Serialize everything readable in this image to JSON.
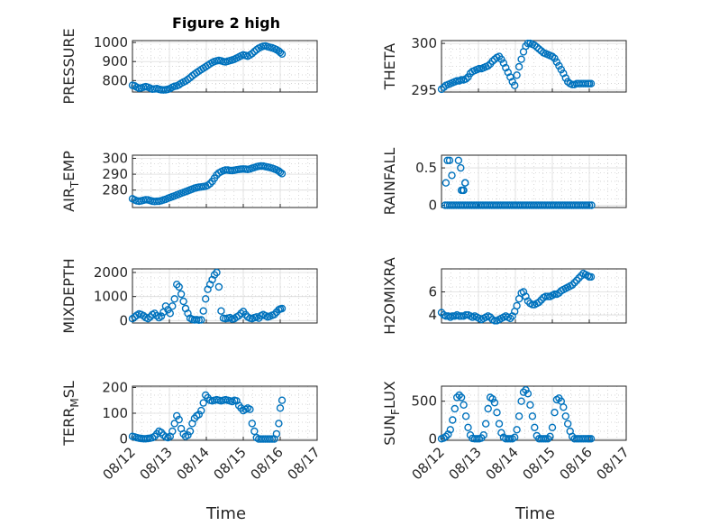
{
  "figure_title": "Figure 2 high",
  "colors": {
    "marker": "#0072bd",
    "axis": "#262626",
    "grid": "#c8c8c8",
    "background": "#ffffff"
  },
  "chart_data": [
    {
      "type": "scatter",
      "ylabel": "PRESSURE",
      "title": "Figure 2 high",
      "xlim": [
        "08/12",
        "08/17"
      ],
      "ylim": [
        740,
        1010
      ],
      "yticks": [
        "800",
        "900",
        "1000"
      ],
      "xticks": [
        "08/12",
        "08/13",
        "08/14",
        "08/15",
        "08/16",
        "08/17"
      ],
      "grid": true,
      "x": [
        0,
        0.06,
        0.12,
        0.18,
        0.24,
        0.3,
        0.36,
        0.42,
        0.48,
        0.54,
        0.6,
        0.66,
        0.72,
        0.78,
        0.84,
        0.9,
        0.96,
        1.02,
        1.08,
        1.14,
        1.2,
        1.26,
        1.32,
        1.38,
        1.44,
        1.5,
        1.56,
        1.62,
        1.68,
        1.74,
        1.8,
        1.86,
        1.92,
        1.98,
        2.04,
        2.1,
        2.16,
        2.22,
        2.28,
        2.34,
        2.4,
        2.46,
        2.52,
        2.58,
        2.64,
        2.7,
        2.76,
        2.82,
        2.88,
        2.94,
        3.0,
        3.06,
        3.12,
        3.18,
        3.24,
        3.3,
        3.36,
        3.42,
        3.48,
        3.54,
        3.6,
        3.66,
        3.72,
        3.78,
        3.84,
        3.9,
        3.96,
        4.0,
        4.05
      ],
      "y": [
        775,
        772,
        765,
        760,
        762,
        765,
        768,
        765,
        760,
        755,
        756,
        758,
        754,
        752,
        751,
        752,
        754,
        758,
        765,
        770,
        772,
        778,
        786,
        792,
        798,
        806,
        815,
        825,
        834,
        842,
        850,
        858,
        865,
        872,
        880,
        888,
        895,
        900,
        904,
        906,
        904,
        900,
        898,
        902,
        905,
        908,
        912,
        918,
        924,
        930,
        935,
        932,
        928,
        934,
        942,
        952,
        962,
        970,
        976,
        980,
        982,
        978,
        975,
        972,
        968,
        962,
        955,
        948,
        940
      ]
    },
    {
      "type": "scatter",
      "ylabel": "THETA",
      "xlim": [
        "08/12",
        "08/17"
      ],
      "ylim": [
        294.8,
        300.3
      ],
      "yticks": [
        "295",
        "300"
      ],
      "xticks": [
        "08/12",
        "08/13",
        "08/14",
        "08/15",
        "08/16",
        "08/17"
      ],
      "grid": true,
      "x": [
        0,
        0.06,
        0.12,
        0.18,
        0.24,
        0.3,
        0.36,
        0.42,
        0.48,
        0.54,
        0.6,
        0.66,
        0.72,
        0.78,
        0.84,
        0.9,
        0.96,
        1.02,
        1.08,
        1.14,
        1.2,
        1.26,
        1.32,
        1.38,
        1.44,
        1.5,
        1.56,
        1.62,
        1.68,
        1.74,
        1.8,
        1.86,
        1.92,
        1.98,
        2.04,
        2.1,
        2.16,
        2.22,
        2.28,
        2.34,
        2.4,
        2.46,
        2.52,
        2.58,
        2.64,
        2.7,
        2.76,
        2.82,
        2.88,
        2.94,
        3.0,
        3.06,
        3.12,
        3.18,
        3.24,
        3.3,
        3.36,
        3.42,
        3.48,
        3.54,
        3.6,
        3.66,
        3.72,
        3.78,
        3.84,
        3.9,
        3.96,
        4.0,
        4.05
      ],
      "y": [
        295.1,
        295.3,
        295.5,
        295.6,
        295.7,
        295.8,
        295.9,
        296.0,
        296.0,
        296.1,
        296.1,
        296.2,
        296.4,
        296.8,
        297.0,
        297.1,
        297.2,
        297.3,
        297.3,
        297.4,
        297.5,
        297.6,
        297.8,
        298.1,
        298.3,
        298.5,
        298.6,
        298.3,
        297.9,
        297.4,
        296.9,
        296.4,
        295.9,
        295.5,
        296.6,
        297.5,
        298.3,
        299.1,
        299.7,
        300.0,
        300.0,
        299.9,
        299.8,
        299.6,
        299.4,
        299.2,
        299.0,
        298.9,
        298.8,
        298.7,
        298.6,
        298.4,
        298.0,
        297.6,
        297.2,
        296.8,
        296.3,
        295.9,
        295.7,
        295.6,
        295.6,
        295.7,
        295.7,
        295.7,
        295.7,
        295.7,
        295.7,
        295.7,
        295.7
      ]
    },
    {
      "type": "scatter",
      "ylabel": "AIR_TEMP",
      "xlim": [
        "08/12",
        "08/17"
      ],
      "ylim": [
        269,
        302
      ],
      "yticks": [
        "280",
        "290",
        "300"
      ],
      "xticks": [
        "08/12",
        "08/13",
        "08/14",
        "08/15",
        "08/16",
        "08/17"
      ],
      "grid": true,
      "x": [
        0,
        0.06,
        0.12,
        0.18,
        0.24,
        0.3,
        0.36,
        0.42,
        0.48,
        0.54,
        0.6,
        0.66,
        0.72,
        0.78,
        0.84,
        0.9,
        0.96,
        1.02,
        1.08,
        1.14,
        1.2,
        1.26,
        1.32,
        1.38,
        1.44,
        1.5,
        1.56,
        1.62,
        1.68,
        1.74,
        1.8,
        1.86,
        1.92,
        1.98,
        2.04,
        2.1,
        2.16,
        2.22,
        2.28,
        2.34,
        2.4,
        2.46,
        2.52,
        2.58,
        2.64,
        2.7,
        2.76,
        2.82,
        2.88,
        2.94,
        3.0,
        3.06,
        3.12,
        3.18,
        3.24,
        3.3,
        3.36,
        3.42,
        3.48,
        3.54,
        3.6,
        3.66,
        3.72,
        3.78,
        3.84,
        3.9,
        3.96,
        4.0,
        4.05
      ],
      "y": [
        274.5,
        273.8,
        273.2,
        273.0,
        273.2,
        273.6,
        273.9,
        273.8,
        273.4,
        273.0,
        272.8,
        272.9,
        273.0,
        273.3,
        273.8,
        274.2,
        274.8,
        275.3,
        275.8,
        276.3,
        276.9,
        277.4,
        278.0,
        278.5,
        279.0,
        279.5,
        280.1,
        280.6,
        281.2,
        281.5,
        281.8,
        282.0,
        282.2,
        282.4,
        283.0,
        284.0,
        285.5,
        287.5,
        289.5,
        290.8,
        291.6,
        292.2,
        292.6,
        292.6,
        292.4,
        292.3,
        292.5,
        292.8,
        293.0,
        293.2,
        293.3,
        293.2,
        293.0,
        293.3,
        293.8,
        294.2,
        294.7,
        295.0,
        295.2,
        295.1,
        294.8,
        294.5,
        294.2,
        293.8,
        293.3,
        292.7,
        292.0,
        291.2,
        290.4
      ]
    },
    {
      "type": "scatter",
      "ylabel": "RAINFALL",
      "xlim": [
        "08/12",
        "08/17"
      ],
      "ylim": [
        -0.03,
        0.67
      ],
      "yticks": [
        "0",
        "0.5"
      ],
      "xticks": [
        "08/12",
        "08/13",
        "08/14",
        "08/15",
        "08/16",
        "08/17"
      ],
      "grid": true,
      "x": [
        0.1,
        0.16,
        0.22,
        0.28,
        0.34,
        0.4,
        0.46,
        0.52,
        0.58,
        0.64,
        0.7,
        0.76,
        0.82,
        0.88,
        0.94,
        1.0,
        1.06,
        1.12,
        1.18,
        1.24,
        1.3,
        1.36,
        1.42,
        1.48,
        1.54,
        1.6,
        1.66,
        1.72,
        1.78,
        1.84,
        1.9,
        1.96,
        2.02,
        2.08,
        2.14,
        2.2,
        2.26,
        2.32,
        2.38,
        2.44,
        2.5,
        2.56,
        2.62,
        2.68,
        2.74,
        2.8,
        2.86,
        2.92,
        2.98,
        3.04,
        3.1,
        3.16,
        3.22,
        3.28,
        3.34,
        3.4,
        3.46,
        3.52,
        3.58,
        3.64,
        3.7,
        3.76,
        3.82,
        3.88,
        3.94,
        4.0,
        4.06,
        0.12,
        0.16,
        0.22,
        0.28,
        0.46,
        0.52,
        0.58,
        0.64,
        0.54,
        0.6,
        0.64
      ],
      "y": [
        0,
        0,
        0,
        0,
        0,
        0,
        0,
        0,
        0,
        0,
        0,
        0,
        0,
        0,
        0,
        0,
        0,
        0,
        0,
        0,
        0,
        0,
        0,
        0,
        0,
        0,
        0,
        0,
        0,
        0,
        0,
        0,
        0,
        0,
        0,
        0,
        0,
        0,
        0,
        0,
        0,
        0,
        0,
        0,
        0,
        0,
        0,
        0,
        0,
        0,
        0,
        0,
        0,
        0,
        0,
        0,
        0,
        0,
        0,
        0,
        0,
        0,
        0,
        0,
        0,
        0,
        0,
        0.3,
        0.6,
        0.6,
        0.4,
        0.6,
        0.5,
        0.2,
        0.3,
        0.2,
        0.2,
        0.3
      ]
    },
    {
      "type": "scatter",
      "ylabel": "MIXDEPTH",
      "xlim": [
        "08/12",
        "08/17"
      ],
      "ylim": [
        -100,
        2150
      ],
      "yticks": [
        "0",
        "1000",
        "2000"
      ],
      "xticks": [
        "08/12",
        "08/13",
        "08/14",
        "08/15",
        "08/16",
        "08/17"
      ],
      "grid": true,
      "x": [
        0,
        0.06,
        0.12,
        0.18,
        0.24,
        0.3,
        0.36,
        0.42,
        0.48,
        0.54,
        0.6,
        0.66,
        0.72,
        0.78,
        0.84,
        0.9,
        0.96,
        1.02,
        1.08,
        1.14,
        1.2,
        1.26,
        1.32,
        1.38,
        1.44,
        1.5,
        1.56,
        1.62,
        1.68,
        1.74,
        1.8,
        1.86,
        1.92,
        1.98,
        2.04,
        2.1,
        2.16,
        2.22,
        2.28,
        2.34,
        2.4,
        2.46,
        2.52,
        2.58,
        2.64,
        2.7,
        2.76,
        2.82,
        2.88,
        2.94,
        3.0,
        3.06,
        3.12,
        3.18,
        3.24,
        3.3,
        3.36,
        3.42,
        3.48,
        3.54,
        3.6,
        3.66,
        3.72,
        3.78,
        3.84,
        3.9,
        3.96,
        4.0,
        4.05
      ],
      "y": [
        80,
        150,
        220,
        280,
        250,
        200,
        120,
        80,
        150,
        250,
        300,
        200,
        120,
        180,
        350,
        600,
        450,
        300,
        600,
        900,
        1500,
        1400,
        1100,
        800,
        500,
        300,
        100,
        50,
        30,
        40,
        20,
        30,
        400,
        900,
        1300,
        1500,
        1700,
        1900,
        2000,
        1400,
        400,
        100,
        80,
        100,
        120,
        60,
        80,
        150,
        200,
        300,
        380,
        250,
        150,
        100,
        80,
        120,
        150,
        100,
        200,
        250,
        200,
        150,
        180,
        220,
        250,
        350,
        450,
        480,
        500
      ]
    },
    {
      "type": "scatter",
      "ylabel": "H2OMIXRA",
      "xlim": [
        "08/12",
        "08/17"
      ],
      "ylim": [
        3.3,
        8.0
      ],
      "yticks": [
        "4",
        "6"
      ],
      "xticks": [
        "08/12",
        "08/13",
        "08/14",
        "08/15",
        "08/16",
        "08/17"
      ],
      "grid": true,
      "x": [
        0,
        0.06,
        0.12,
        0.18,
        0.24,
        0.3,
        0.36,
        0.42,
        0.48,
        0.54,
        0.6,
        0.66,
        0.72,
        0.78,
        0.84,
        0.9,
        0.96,
        1.02,
        1.08,
        1.14,
        1.2,
        1.26,
        1.32,
        1.38,
        1.44,
        1.5,
        1.56,
        1.62,
        1.68,
        1.74,
        1.8,
        1.86,
        1.92,
        1.98,
        2.04,
        2.1,
        2.16,
        2.22,
        2.28,
        2.34,
        2.4,
        2.46,
        2.52,
        2.58,
        2.64,
        2.7,
        2.76,
        2.82,
        2.88,
        2.94,
        3.0,
        3.06,
        3.12,
        3.18,
        3.24,
        3.3,
        3.36,
        3.42,
        3.48,
        3.54,
        3.6,
        3.66,
        3.72,
        3.78,
        3.84,
        3.9,
        3.96,
        4.0,
        4.05
      ],
      "y": [
        4.2,
        4.0,
        3.9,
        3.9,
        3.8,
        3.9,
        3.9,
        4.0,
        3.9,
        3.9,
        3.9,
        4.0,
        4.0,
        3.9,
        3.8,
        3.9,
        3.8,
        3.7,
        3.6,
        3.7,
        3.8,
        3.9,
        3.8,
        3.6,
        3.5,
        3.5,
        3.6,
        3.7,
        3.8,
        3.9,
        3.8,
        3.7,
        3.9,
        4.3,
        4.8,
        5.4,
        5.9,
        6.0,
        5.6,
        5.2,
        5.0,
        4.9,
        4.9,
        5.0,
        5.1,
        5.3,
        5.5,
        5.6,
        5.6,
        5.6,
        5.7,
        5.8,
        5.8,
        5.9,
        6.1,
        6.2,
        6.3,
        6.4,
        6.5,
        6.6,
        6.8,
        7.0,
        7.2,
        7.4,
        7.6,
        7.5,
        7.4,
        7.3,
        7.3
      ]
    },
    {
      "type": "scatter",
      "ylabel": "TERR_MSL",
      "xlim": [
        "08/12",
        "08/17"
      ],
      "ylim": [
        -5,
        205
      ],
      "yticks": [
        "0",
        "100",
        "200"
      ],
      "xticks": [
        "08/12",
        "08/13",
        "08/14",
        "08/15",
        "08/16",
        "08/17"
      ],
      "grid": true,
      "x": [
        0,
        0.06,
        0.12,
        0.18,
        0.24,
        0.3,
        0.36,
        0.42,
        0.48,
        0.54,
        0.6,
        0.66,
        0.72,
        0.78,
        0.84,
        0.9,
        0.96,
        1.02,
        1.08,
        1.14,
        1.2,
        1.26,
        1.32,
        1.38,
        1.44,
        1.5,
        1.56,
        1.62,
        1.68,
        1.74,
        1.8,
        1.86,
        1.92,
        1.98,
        2.04,
        2.1,
        2.16,
        2.22,
        2.28,
        2.34,
        2.4,
        2.46,
        2.52,
        2.58,
        2.64,
        2.7,
        2.76,
        2.82,
        2.88,
        2.94,
        3.0,
        3.06,
        3.12,
        3.18,
        3.24,
        3.3,
        3.36,
        3.42,
        3.48,
        3.54,
        3.6,
        3.66,
        3.72,
        3.78,
        3.84,
        3.9,
        3.96,
        4.0,
        4.05
      ],
      "y": [
        10,
        8,
        5,
        3,
        2,
        1,
        1,
        2,
        3,
        5,
        10,
        20,
        30,
        25,
        15,
        8,
        5,
        10,
        30,
        60,
        90,
        75,
        40,
        20,
        10,
        15,
        30,
        60,
        80,
        90,
        95,
        110,
        140,
        170,
        160,
        150,
        148,
        150,
        152,
        150,
        148,
        150,
        152,
        150,
        148,
        145,
        150,
        148,
        130,
        120,
        110,
        115,
        120,
        115,
        60,
        30,
        5,
        0,
        0,
        0,
        0,
        0,
        0,
        0,
        0,
        20,
        60,
        120,
        150
      ]
    },
    {
      "type": "scatter",
      "ylabel": "SUN_FLUX",
      "xlim": [
        "08/12",
        "08/17"
      ],
      "ylim": [
        -20,
        700
      ],
      "yticks": [
        "0",
        "500"
      ],
      "xticks": [
        "08/12",
        "08/13",
        "08/14",
        "08/15",
        "08/16",
        "08/17"
      ],
      "grid": true,
      "x": [
        0,
        0.06,
        0.12,
        0.18,
        0.24,
        0.3,
        0.36,
        0.42,
        0.48,
        0.54,
        0.6,
        0.66,
        0.72,
        0.78,
        0.84,
        0.9,
        0.96,
        1.02,
        1.08,
        1.14,
        1.2,
        1.26,
        1.32,
        1.38,
        1.44,
        1.5,
        1.56,
        1.62,
        1.68,
        1.74,
        1.8,
        1.86,
        1.92,
        1.98,
        2.04,
        2.1,
        2.16,
        2.22,
        2.28,
        2.34,
        2.4,
        2.46,
        2.52,
        2.58,
        2.64,
        2.7,
        2.76,
        2.82,
        2.88,
        2.94,
        3.0,
        3.06,
        3.12,
        3.18,
        3.24,
        3.3,
        3.36,
        3.42,
        3.48,
        3.54,
        3.6,
        3.66,
        3.72,
        3.78,
        3.84,
        3.9,
        3.96,
        4.0,
        4.05
      ],
      "y": [
        0,
        10,
        30,
        60,
        120,
        250,
        400,
        550,
        580,
        550,
        450,
        300,
        150,
        50,
        5,
        0,
        0,
        0,
        10,
        50,
        200,
        400,
        550,
        530,
        480,
        350,
        200,
        80,
        20,
        0,
        0,
        0,
        0,
        20,
        120,
        300,
        500,
        620,
        650,
        600,
        450,
        300,
        150,
        40,
        0,
        0,
        0,
        0,
        0,
        30,
        150,
        350,
        520,
        540,
        500,
        420,
        300,
        200,
        100,
        30,
        0,
        0,
        0,
        0,
        0,
        0,
        0,
        0,
        0
      ]
    }
  ],
  "xlabel_left": "Time",
  "xlabel_right": "Time"
}
